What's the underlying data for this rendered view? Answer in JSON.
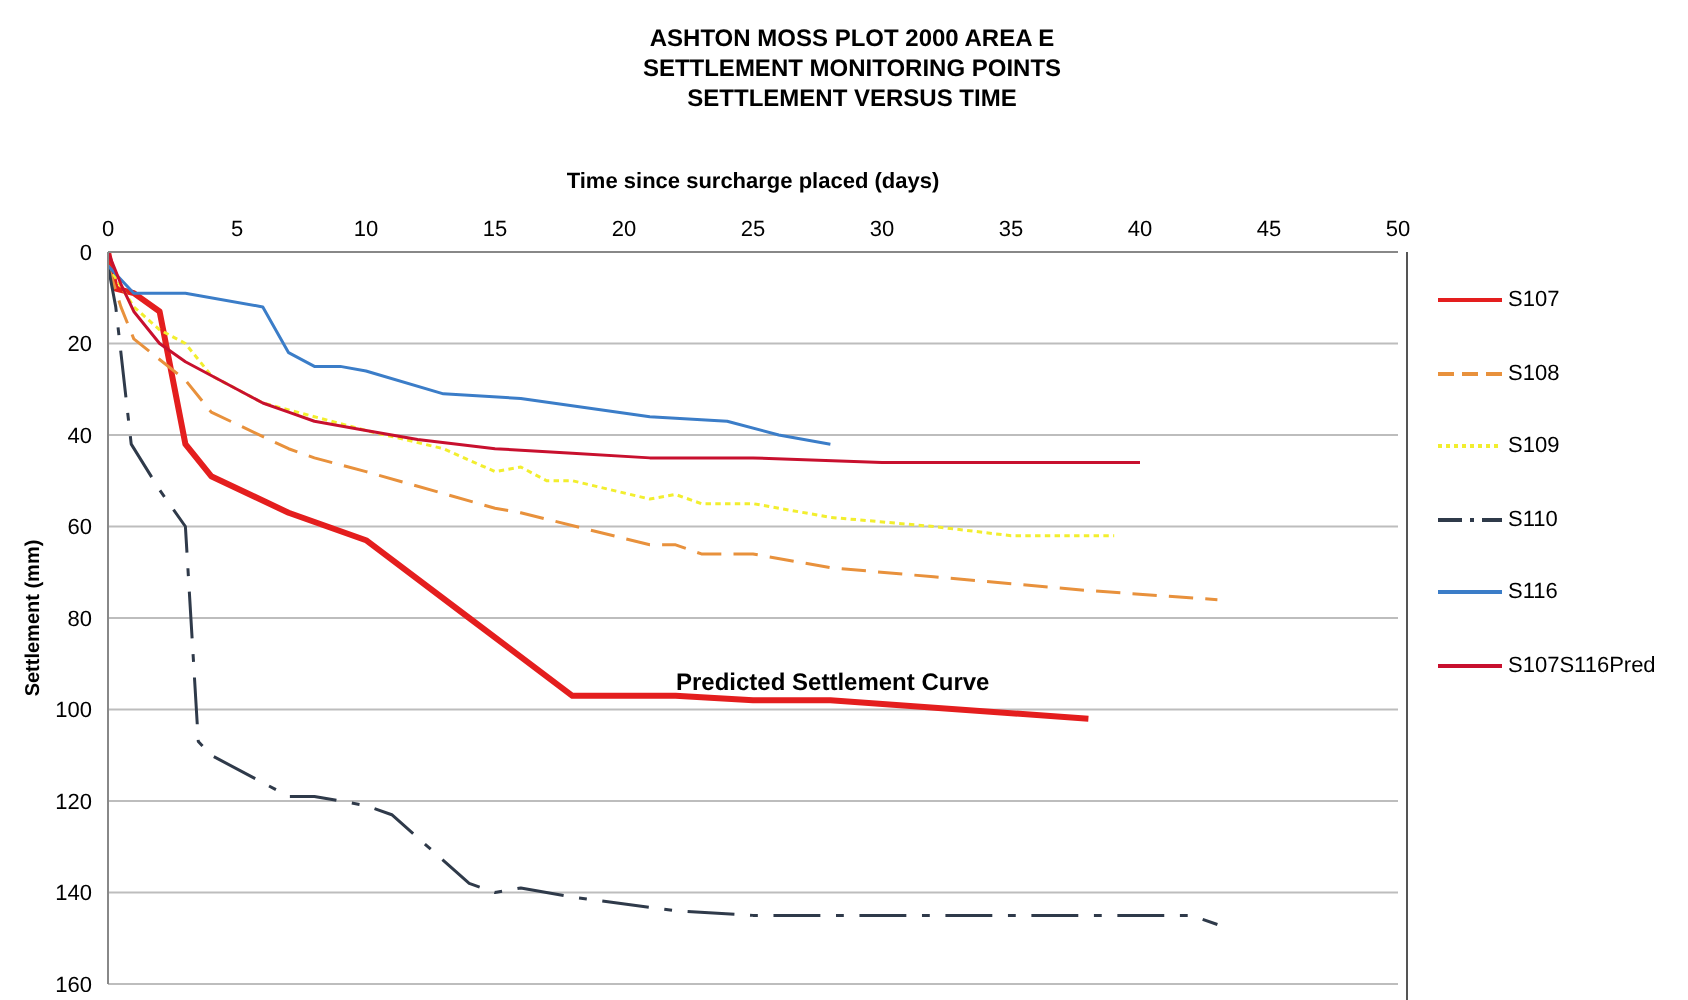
{
  "chart_data": {
    "type": "line",
    "title": "ASHTON MOSS PLOT 2000 AREA E\nSETTLEMENT MONITORING POINTS\nSETTLEMENT VERSUS TIME",
    "xlabel": "Time since surcharge placed (days)",
    "ylabel": "Settlement (mm)",
    "xlim": [
      0,
      50
    ],
    "xticks": [
      0,
      5,
      10,
      15,
      20,
      25,
      30,
      35,
      40,
      45,
      50
    ],
    "ylim": [
      160,
      0
    ],
    "yticks": [
      0,
      20,
      40,
      60,
      80,
      100,
      120,
      140,
      160
    ],
    "grid": "y",
    "legend": "right",
    "marker": "none",
    "annotations": [
      "Predicted Settlement Curve"
    ],
    "series": [
      {
        "name": "S107",
        "color": "#e41e1e",
        "line_style": "solid",
        "x": [
          0,
          0.3,
          1,
          2,
          3,
          4,
          7,
          10,
          14,
          18,
          22,
          25,
          28,
          38
        ],
        "values": [
          0,
          8,
          9,
          13,
          42,
          49,
          57,
          63,
          80,
          97,
          97,
          98,
          98,
          102
        ]
      },
      {
        "name": "S108",
        "color": "#e8913c",
        "line_style": "dashed",
        "x": [
          0,
          0.5,
          1,
          3,
          4,
          7,
          8,
          10,
          15,
          16,
          21,
          22,
          23,
          25,
          28,
          32,
          38,
          43
        ],
        "values": [
          3,
          12,
          19,
          28,
          35,
          43,
          45,
          48,
          56,
          57,
          64,
          64,
          66,
          66,
          69,
          71,
          74,
          76
        ]
      },
      {
        "name": "S109",
        "color": "#f2ee2e",
        "line_style": "dotted",
        "x": [
          0,
          1,
          2,
          3,
          4,
          6,
          8,
          10,
          13,
          15,
          16,
          17,
          18,
          21,
          22,
          23,
          25,
          28,
          32,
          35,
          39
        ],
        "values": [
          3,
          12,
          17,
          20,
          27,
          33,
          36,
          39,
          43,
          48,
          47,
          50,
          50,
          54,
          53,
          55,
          55,
          58,
          60,
          62,
          62
        ]
      },
      {
        "name": "S110",
        "color": "#2f3a4a",
        "line_style": "dashdot",
        "x": [
          0,
          0.3,
          0.9,
          2,
          3,
          3.5,
          4,
          7,
          8,
          10,
          11,
          14,
          15,
          16,
          18,
          22,
          25,
          30,
          35,
          40,
          42,
          43
        ],
        "values": [
          3,
          12,
          42,
          52,
          60,
          107,
          110,
          119,
          119,
          121,
          123,
          138,
          140,
          139,
          141,
          144,
          145,
          145,
          145,
          145,
          145,
          147
        ]
      },
      {
        "name": "S116",
        "color": "#3b7dc8",
        "line_style": "solid",
        "x": [
          0,
          1,
          3,
          6,
          7,
          8,
          9,
          10,
          13,
          16,
          21,
          24,
          26,
          28
        ],
        "values": [
          3,
          9,
          9,
          12,
          22,
          25,
          25,
          26,
          31,
          32,
          36,
          37,
          40,
          42
        ]
      },
      {
        "name": "S107S116Pred",
        "color": "#c8102e",
        "line_style": "solid",
        "x": [
          0,
          0.5,
          1,
          2,
          3,
          4,
          5,
          6,
          7,
          8,
          10,
          12,
          15,
          18,
          21,
          25,
          30,
          35,
          40
        ],
        "values": [
          0,
          7,
          13,
          20,
          24,
          27,
          30,
          33,
          35,
          37,
          39,
          41,
          43,
          44,
          45,
          45,
          46,
          46,
          46
        ]
      }
    ]
  }
}
